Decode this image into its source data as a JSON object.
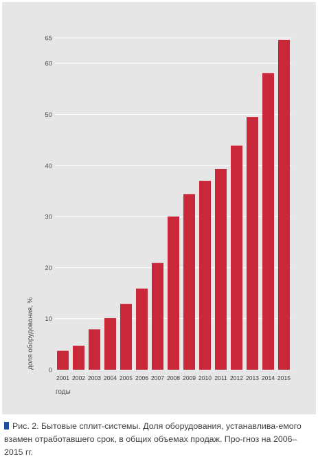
{
  "colors": {
    "bar": "#c8283a",
    "plot_background": "#e6e6e7",
    "grid": "#ffffff",
    "caption_marker": "#1f4f9a"
  },
  "caption": {
    "marker_icon": "blue-square-marker",
    "text": "Рис. 2. Бытовые сплит-системы. Доля оборудования, устанавлива-емого взамен отработавшего срок, в общих объемах продаж. Про-гноз на 2006–2015 гг."
  },
  "chart_data": {
    "type": "bar",
    "categories": [
      "2001",
      "2002",
      "2003",
      "2004",
      "2005",
      "2006",
      "2007",
      "2008",
      "2009",
      "2010",
      "2011",
      "2012",
      "2013",
      "2014",
      "2015"
    ],
    "values": [
      3.7,
      4.7,
      7.9,
      10.1,
      12.9,
      15.9,
      20.9,
      30.0,
      34.4,
      37.0,
      39.3,
      43.9,
      49.5,
      58.1,
      64.6
    ],
    "title": "",
    "xlabel": "годы",
    "ylabel": "доля оборудования, %",
    "ylim": [
      0,
      65
    ],
    "yticks": [
      0,
      10,
      20,
      30,
      40,
      50,
      60,
      65
    ],
    "grid": true,
    "legend": "none"
  }
}
